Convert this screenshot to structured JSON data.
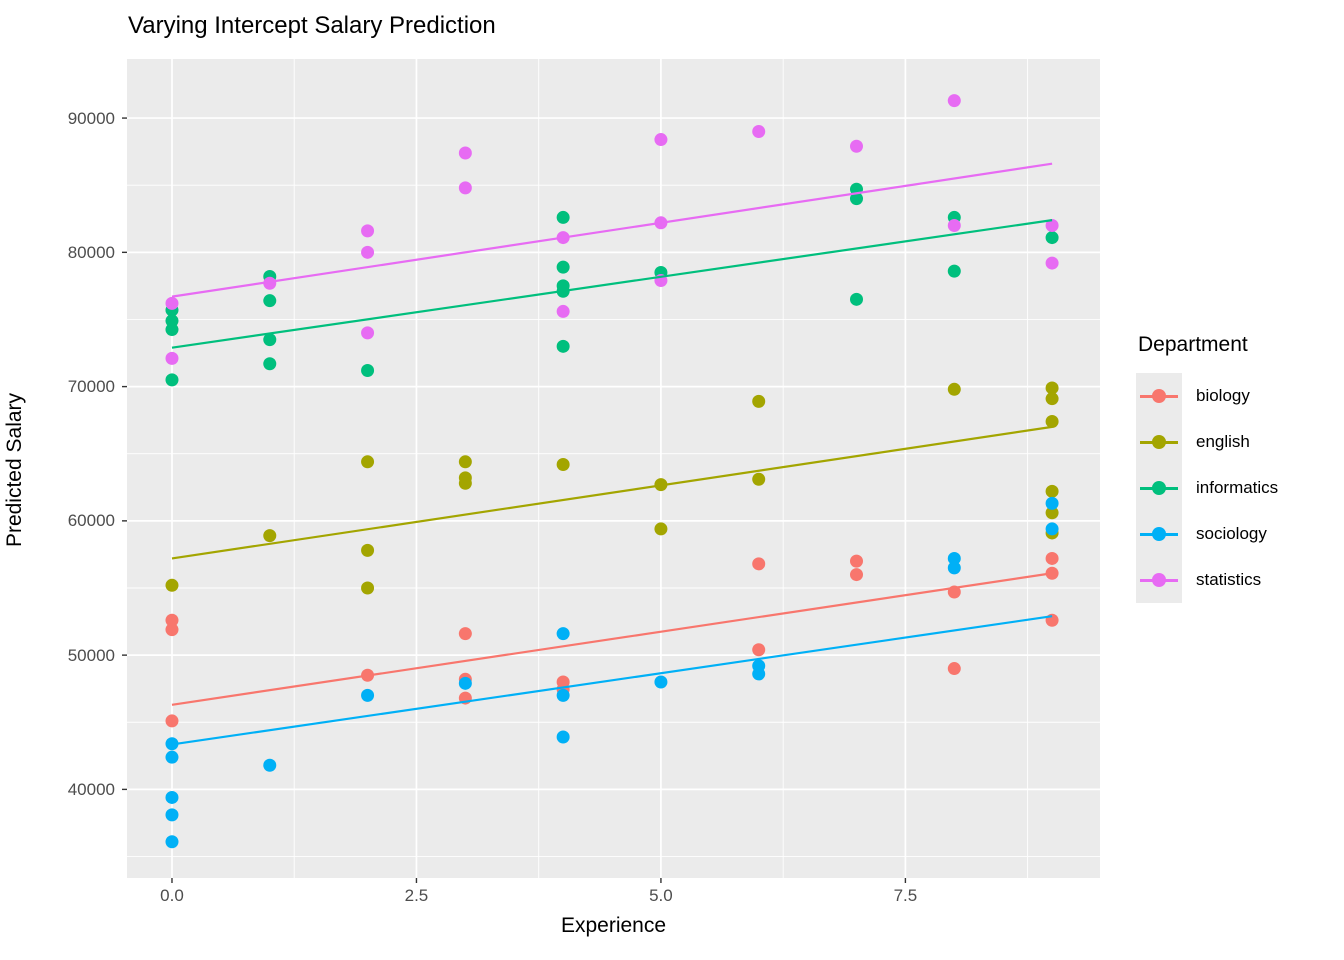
{
  "chart_data": {
    "type": "scatter",
    "title": "Varying Intercept Salary Prediction",
    "xlabel": "Experience",
    "ylabel": "Predicted Salary",
    "legend_title": "Department",
    "legend_position": "right",
    "panel_bg": "#ebebeb",
    "grid_color": "#ffffff",
    "tick_label_color": "#4d4d4d",
    "xlim": [
      -0.46,
      9.49
    ],
    "ylim": [
      33400,
      94400
    ],
    "x_ticks": [
      0.0,
      2.5,
      5.0,
      7.5
    ],
    "x_tick_labels": [
      "0.0",
      "2.5",
      "5.0",
      "7.5"
    ],
    "x_minor": [
      1.25,
      3.75,
      6.25,
      8.75
    ],
    "y_ticks": [
      40000,
      50000,
      60000,
      70000,
      80000,
      90000
    ],
    "y_tick_labels": [
      "40000",
      "50000",
      "60000",
      "70000",
      "80000",
      "90000"
    ],
    "y_minor": [
      35000,
      45000,
      55000,
      65000,
      75000,
      85000
    ],
    "series": [
      {
        "name": "biology",
        "color": "#F8766D",
        "points": [
          [
            0,
            52600
          ],
          [
            0,
            51900
          ],
          [
            0,
            45100
          ],
          [
            2,
            48500
          ],
          [
            3,
            51600
          ],
          [
            3,
            48200
          ],
          [
            3,
            46800
          ],
          [
            4,
            48000
          ],
          [
            4,
            47450
          ],
          [
            6,
            56800
          ],
          [
            6,
            50400
          ],
          [
            7,
            57000
          ],
          [
            7,
            56000
          ],
          [
            8,
            54700
          ],
          [
            8,
            49000
          ],
          [
            9,
            57200
          ],
          [
            9,
            56100
          ],
          [
            9,
            52600
          ]
        ],
        "line": {
          "x0": 0,
          "y0": 46300,
          "x1": 9,
          "y1": 56100
        }
      },
      {
        "name": "english",
        "color": "#A3A500",
        "points": [
          [
            0,
            55200
          ],
          [
            1,
            58900
          ],
          [
            2,
            64400
          ],
          [
            2,
            57800
          ],
          [
            2,
            55000
          ],
          [
            3,
            64400
          ],
          [
            3,
            63200
          ],
          [
            3,
            62800
          ],
          [
            4,
            64200
          ],
          [
            5,
            62700
          ],
          [
            5,
            59400
          ],
          [
            6,
            68900
          ],
          [
            6,
            63100
          ],
          [
            8,
            69800
          ],
          [
            9,
            69900
          ],
          [
            9,
            69100
          ],
          [
            9,
            67400
          ],
          [
            9,
            62200
          ],
          [
            9,
            60600
          ],
          [
            9,
            59100
          ]
        ],
        "line": {
          "x0": 0,
          "y0": 57200,
          "x1": 9,
          "y1": 67000
        }
      },
      {
        "name": "informatics",
        "color": "#00BF7D",
        "points": [
          [
            0,
            75700
          ],
          [
            0,
            74900
          ],
          [
            0,
            74250
          ],
          [
            0,
            70500
          ],
          [
            1,
            78200
          ],
          [
            1,
            76400
          ],
          [
            1,
            73500
          ],
          [
            1,
            71700
          ],
          [
            2,
            71200
          ],
          [
            4,
            82600
          ],
          [
            4,
            78900
          ],
          [
            4,
            77500
          ],
          [
            4,
            77100
          ],
          [
            4,
            73000
          ],
          [
            5,
            78500
          ],
          [
            7,
            84700
          ],
          [
            7,
            84000
          ],
          [
            7,
            76500
          ],
          [
            8,
            82600
          ],
          [
            8,
            78600
          ],
          [
            9,
            81100
          ]
        ],
        "line": {
          "x0": 0,
          "y0": 72900,
          "x1": 9,
          "y1": 82400
        }
      },
      {
        "name": "sociology",
        "color": "#00B0F6",
        "points": [
          [
            0,
            43400
          ],
          [
            0,
            42400
          ],
          [
            0,
            39400
          ],
          [
            0,
            38100
          ],
          [
            0,
            36100
          ],
          [
            1,
            41800
          ],
          [
            2,
            47000
          ],
          [
            3,
            47900
          ],
          [
            4,
            51600
          ],
          [
            4,
            47000
          ],
          [
            4,
            43900
          ],
          [
            5,
            48000
          ],
          [
            6,
            49200
          ],
          [
            6,
            48600
          ],
          [
            8,
            57200
          ],
          [
            8,
            56500
          ],
          [
            9,
            61300
          ],
          [
            9,
            59400
          ]
        ],
        "line": {
          "x0": 0,
          "y0": 43350,
          "x1": 9,
          "y1": 52900
        }
      },
      {
        "name": "statistics",
        "color": "#E76BF3",
        "points": [
          [
            0,
            76200
          ],
          [
            0,
            72100
          ],
          [
            1,
            77700
          ],
          [
            2,
            81600
          ],
          [
            2,
            80000
          ],
          [
            2,
            74000
          ],
          [
            3,
            87400
          ],
          [
            3,
            84800
          ],
          [
            4,
            81100
          ],
          [
            4,
            75600
          ],
          [
            5,
            88400
          ],
          [
            5,
            82200
          ],
          [
            5,
            77900
          ],
          [
            6,
            89000
          ],
          [
            7,
            87900
          ],
          [
            8,
            91300
          ],
          [
            8,
            82000
          ],
          [
            9,
            82000
          ],
          [
            9,
            79200
          ]
        ],
        "line": {
          "x0": 0,
          "y0": 76700,
          "x1": 9,
          "y1": 86600
        }
      }
    ]
  }
}
